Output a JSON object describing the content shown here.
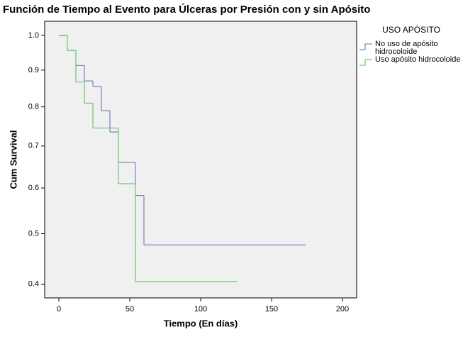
{
  "chart_data": {
    "type": "step",
    "title": "Función de Tiempo al Evento para Úlceras por Presión con y sin Apósito",
    "xlabel": "Tiempo (En días)",
    "ylabel": "Cum Survival",
    "legend_title": "USO APÓSITO",
    "series": [
      {
        "name": "No uso de apósito hidrocoloide",
        "color": "#5a6fb5",
        "x": [
          0,
          6,
          12,
          18,
          24,
          30,
          36,
          42,
          54,
          60,
          174
        ],
        "values": [
          1.0,
          0.956,
          0.913,
          0.87,
          0.855,
          0.79,
          0.735,
          0.66,
          0.583,
          0.477,
          0.477
        ]
      },
      {
        "name": "Uso apósito hidrocoloide",
        "color": "#4cbf4c",
        "x": [
          0,
          6,
          12,
          18,
          24,
          42,
          54,
          126
        ],
        "values": [
          1.0,
          0.956,
          0.867,
          0.81,
          0.745,
          0.61,
          0.405,
          0.405
        ]
      }
    ],
    "xlim": [
      -10,
      210
    ],
    "xticks": [
      0,
      50,
      100,
      150,
      200
    ],
    "ylim": [
      0.375,
      1.042
    ],
    "yscale": "sqrt",
    "yticks": [
      {
        "value": 0.4,
        "label": "0.4"
      },
      {
        "value": 0.5,
        "label": "0.5"
      },
      {
        "value": 0.6,
        "label": "0.6"
      },
      {
        "value": 0.7,
        "label": "0.7"
      },
      {
        "value": 0.8,
        "label": "0.8"
      },
      {
        "value": 0.9,
        "label": "0.9"
      },
      {
        "value": 1.0,
        "label": "1.0"
      }
    ],
    "legend": "right"
  }
}
